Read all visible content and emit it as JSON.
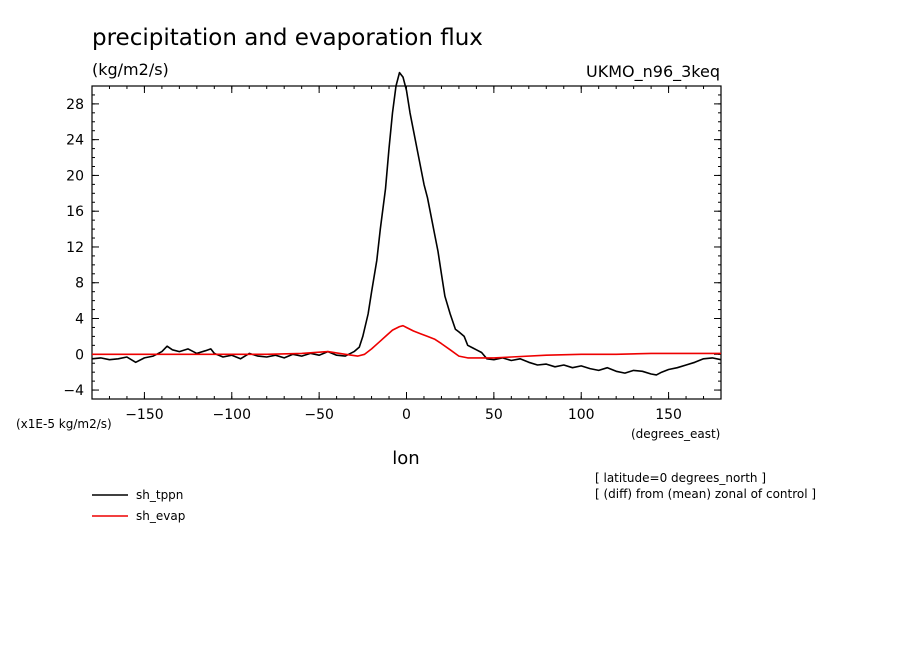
{
  "chart_data": {
    "type": "line",
    "title": "precipitation and evaporation flux",
    "units": "(kg/m2/s)",
    "model_label": "UKMO_n96_3keq",
    "xlabel": "lon",
    "x_units": "(degrees_east)",
    "y_scale_note": "(x1E-5 kg/m2/s)",
    "annotations": [
      "[ latitude=0 degrees_north ]",
      "[ (diff) from (mean) zonal of control ]"
    ],
    "xlim": [
      -180,
      180
    ],
    "ylim": [
      -5,
      30
    ],
    "x_ticks": [
      -150,
      -100,
      -50,
      0,
      50,
      100,
      150
    ],
    "y_ticks": [
      -4,
      0,
      4,
      8,
      12,
      16,
      20,
      24,
      28
    ],
    "series": [
      {
        "name": "sh_tppn",
        "color": "#000000",
        "x": [
          -180,
          -175,
          -170,
          -165,
          -160,
          -155,
          -150,
          -145,
          -140,
          -137,
          -134,
          -130,
          -125,
          -120,
          -115,
          -112,
          -110,
          -105,
          -100,
          -95,
          -90,
          -85,
          -80,
          -75,
          -70,
          -65,
          -60,
          -55,
          -50,
          -45,
          -40,
          -35,
          -30,
          -27,
          -25,
          -22,
          -20,
          -17,
          -15,
          -12,
          -10,
          -8,
          -6,
          -4,
          -2,
          0,
          2,
          4,
          6,
          8,
          10,
          12,
          14,
          16,
          18,
          20,
          22,
          25,
          28,
          30,
          33,
          35,
          38,
          40,
          43,
          46,
          50,
          55,
          60,
          65,
          70,
          75,
          80,
          85,
          90,
          95,
          100,
          105,
          110,
          115,
          120,
          125,
          130,
          135,
          140,
          143,
          146,
          150,
          155,
          160,
          165,
          170,
          175,
          180
        ],
        "y": [
          -0.5,
          -0.4,
          -0.6,
          -0.5,
          -0.3,
          -0.9,
          -0.4,
          -0.2,
          0.3,
          0.9,
          0.5,
          0.3,
          0.6,
          0.1,
          0.4,
          0.6,
          0.1,
          -0.3,
          -0.1,
          -0.5,
          0.1,
          -0.2,
          -0.3,
          -0.1,
          -0.4,
          0.0,
          -0.2,
          0.1,
          -0.1,
          0.3,
          -0.1,
          -0.2,
          0.3,
          0.8,
          2.0,
          4.5,
          7.0,
          10.5,
          14.0,
          18.5,
          23.0,
          27.0,
          30.0,
          31.5,
          31.0,
          29.5,
          27.0,
          25.0,
          23.0,
          21.0,
          19.0,
          17.5,
          15.5,
          13.5,
          11.5,
          9.0,
          6.5,
          4.5,
          2.8,
          2.5,
          2.0,
          1.0,
          0.7,
          0.5,
          0.2,
          -0.5,
          -0.6,
          -0.4,
          -0.7,
          -0.5,
          -0.9,
          -1.2,
          -1.1,
          -1.4,
          -1.2,
          -1.5,
          -1.3,
          -1.6,
          -1.8,
          -1.5,
          -1.9,
          -2.1,
          -1.8,
          -1.9,
          -2.2,
          -2.3,
          -2.0,
          -1.7,
          -1.5,
          -1.2,
          -0.9,
          -0.5,
          -0.4,
          -0.6
        ]
      },
      {
        "name": "sh_evap",
        "color": "#ee0000",
        "x": [
          -180,
          -160,
          -140,
          -120,
          -100,
          -80,
          -60,
          -45,
          -35,
          -28,
          -24,
          -20,
          -16,
          -12,
          -8,
          -4,
          -2,
          0,
          4,
          8,
          12,
          16,
          20,
          25,
          30,
          35,
          40,
          50,
          60,
          80,
          100,
          120,
          140,
          160,
          180
        ],
        "y": [
          0.0,
          0.0,
          0.0,
          0.0,
          0.0,
          0.0,
          0.1,
          0.3,
          0.0,
          -0.2,
          0.0,
          0.6,
          1.3,
          2.0,
          2.7,
          3.1,
          3.2,
          3.0,
          2.6,
          2.3,
          2.0,
          1.7,
          1.2,
          0.5,
          -0.2,
          -0.4,
          -0.4,
          -0.4,
          -0.3,
          -0.1,
          0.0,
          0.0,
          0.1,
          0.1,
          0.1
        ]
      }
    ],
    "legend_placement": "bottom-left"
  }
}
